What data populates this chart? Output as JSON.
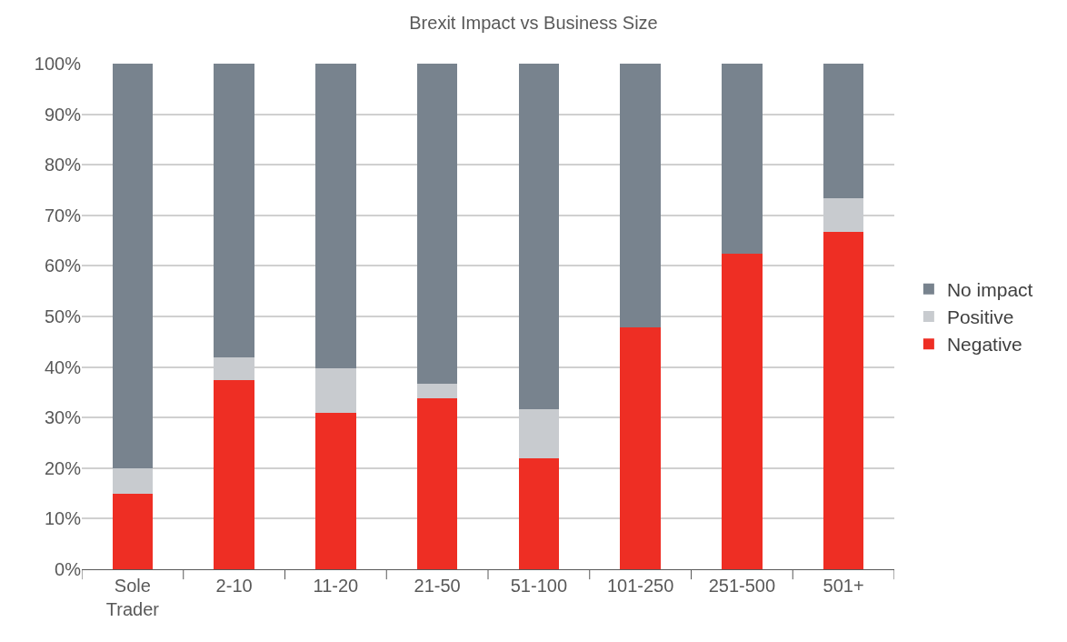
{
  "chart_data": {
    "type": "bar",
    "title": "Brexit Impact vs Business Size",
    "stacked": true,
    "categories": [
      "Sole Trader",
      "2-10",
      "11-20",
      "21-50",
      "51-100",
      "101-250",
      "251-500",
      "501+"
    ],
    "series": [
      {
        "name": "Negative",
        "color": "#ee2e24",
        "values": [
          15,
          37.5,
          31,
          33.9,
          22,
          47.8,
          62.5,
          66.7
        ]
      },
      {
        "name": "Positive",
        "color": "#c8cbcf",
        "values": [
          5,
          4.4,
          8.8,
          2.8,
          9.7,
          0,
          0,
          6.6
        ]
      },
      {
        "name": "No impact",
        "color": "#78838e",
        "values": [
          80,
          58.1,
          60.2,
          63.3,
          68.3,
          52.2,
          37.5,
          26.7
        ]
      }
    ],
    "ylim": [
      0,
      100
    ],
    "yticks": [
      {
        "value": 0,
        "label": "0%"
      },
      {
        "value": 10,
        "label": "10%"
      },
      {
        "value": 20,
        "label": "20%"
      },
      {
        "value": 30,
        "label": "30%"
      },
      {
        "value": 40,
        "label": "40%"
      },
      {
        "value": 50,
        "label": "50%"
      },
      {
        "value": 60,
        "label": "60%"
      },
      {
        "value": 70,
        "label": "70%"
      },
      {
        "value": 80,
        "label": "80%"
      },
      {
        "value": 90,
        "label": "90%"
      },
      {
        "value": 100,
        "label": "100%"
      }
    ],
    "grid": "y",
    "legend": "right"
  }
}
